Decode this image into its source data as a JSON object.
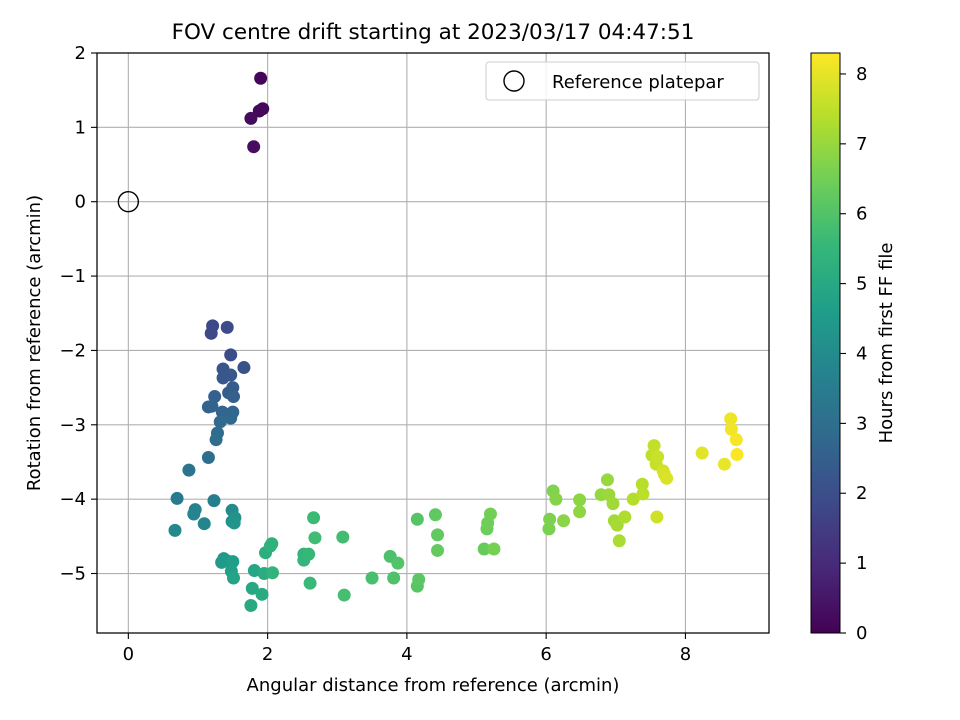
{
  "chart_data": {
    "type": "scatter",
    "title": "FOV centre drift starting at 2023/03/17 04:47:51",
    "xlabel": "Angular distance from reference (arcmin)",
    "ylabel": "Rotation from reference (arcmin)",
    "xlim": [
      -0.45,
      9.2
    ],
    "ylim": [
      -5.8,
      2.0
    ],
    "xticks": [
      0,
      2,
      4,
      6,
      8
    ],
    "yticks": [
      -5,
      -4,
      -3,
      -2,
      -1,
      0,
      1,
      2
    ],
    "grid": true,
    "legend": {
      "position": "top-right",
      "entries": [
        "Reference platepar"
      ]
    },
    "reference_point": {
      "x": 0,
      "y": 0,
      "label": "Reference platepar"
    },
    "colorbar": {
      "label": "Hours from first FF file",
      "colormap": "viridis",
      "range": [
        0,
        8.3
      ],
      "ticks": [
        0,
        1,
        2,
        3,
        4,
        5,
        6,
        7,
        8
      ]
    },
    "colormap_stops": [
      "#440154",
      "#482878",
      "#3e4989",
      "#31688e",
      "#26828e",
      "#1f9e89",
      "#35b779",
      "#6ece58",
      "#b5de2b",
      "#fde725"
    ],
    "series": [
      {
        "points": [
          [
            1.9,
            1.66,
            0.1
          ],
          [
            1.88,
            1.22,
            0.15
          ],
          [
            1.93,
            1.25,
            0.2
          ],
          [
            1.76,
            1.12,
            0.25
          ],
          [
            1.8,
            0.74,
            0.3
          ],
          [
            1.21,
            -1.67,
            1.8
          ],
          [
            1.19,
            -1.77,
            1.85
          ],
          [
            1.42,
            -1.69,
            1.9
          ],
          [
            1.47,
            -2.06,
            2.0
          ],
          [
            1.66,
            -2.23,
            2.1
          ],
          [
            1.36,
            -2.25,
            2.2
          ],
          [
            1.36,
            -2.37,
            2.25
          ],
          [
            1.47,
            -2.33,
            2.3
          ],
          [
            1.5,
            -2.5,
            2.4
          ],
          [
            1.44,
            -2.57,
            2.45
          ],
          [
            1.51,
            -2.62,
            2.5
          ],
          [
            1.24,
            -2.62,
            2.55
          ],
          [
            1.15,
            -2.76,
            2.6
          ],
          [
            1.2,
            -2.75,
            2.65
          ],
          [
            1.35,
            -2.83,
            2.7
          ],
          [
            1.5,
            -2.83,
            2.75
          ],
          [
            1.47,
            -2.91,
            2.8
          ],
          [
            1.32,
            -2.96,
            2.85
          ],
          [
            1.28,
            -3.11,
            2.9
          ],
          [
            1.26,
            -3.2,
            2.95
          ],
          [
            1.15,
            -3.44,
            3.0
          ],
          [
            0.87,
            -3.61,
            3.2
          ],
          [
            0.7,
            -3.99,
            3.4
          ],
          [
            1.23,
            -4.02,
            3.6
          ],
          [
            0.96,
            -4.14,
            3.7
          ],
          [
            0.94,
            -4.2,
            3.75
          ],
          [
            1.09,
            -4.33,
            3.8
          ],
          [
            0.67,
            -4.42,
            3.9
          ],
          [
            1.49,
            -4.15,
            4.0
          ],
          [
            1.49,
            -4.3,
            4.1
          ],
          [
            1.53,
            -4.25,
            4.2
          ],
          [
            1.52,
            -4.32,
            4.3
          ],
          [
            1.37,
            -4.8,
            4.4
          ],
          [
            1.34,
            -4.85,
            4.5
          ],
          [
            1.42,
            -4.83,
            4.55
          ],
          [
            1.5,
            -4.84,
            4.6
          ],
          [
            1.48,
            -4.97,
            4.7
          ],
          [
            1.51,
            -5.06,
            4.8
          ],
          [
            1.81,
            -4.96,
            4.9
          ],
          [
            1.78,
            -5.2,
            4.95
          ],
          [
            1.76,
            -5.43,
            5.0
          ],
          [
            1.92,
            -5.28,
            5.05
          ],
          [
            1.95,
            -5.0,
            5.1
          ],
          [
            1.97,
            -4.72,
            5.2
          ],
          [
            2.06,
            -4.6,
            5.25
          ],
          [
            2.04,
            -4.63,
            5.3
          ],
          [
            2.07,
            -4.99,
            5.4
          ],
          [
            2.52,
            -4.74,
            5.45
          ],
          [
            2.52,
            -4.82,
            5.5
          ],
          [
            2.59,
            -4.74,
            5.55
          ],
          [
            2.61,
            -5.13,
            5.6
          ],
          [
            2.66,
            -4.25,
            5.65
          ],
          [
            2.68,
            -4.52,
            5.7
          ],
          [
            3.08,
            -4.51,
            5.75
          ],
          [
            3.1,
            -5.29,
            5.8
          ],
          [
            3.5,
            -5.06,
            5.85
          ],
          [
            3.76,
            -4.77,
            5.9
          ],
          [
            3.81,
            -5.06,
            5.95
          ],
          [
            3.87,
            -4.86,
            6.0
          ],
          [
            4.15,
            -4.27,
            6.05
          ],
          [
            4.15,
            -5.17,
            6.1
          ],
          [
            4.17,
            -5.08,
            6.15
          ],
          [
            4.41,
            -4.21,
            6.2
          ],
          [
            4.44,
            -4.48,
            6.25
          ],
          [
            4.44,
            -4.69,
            6.3
          ],
          [
            5.11,
            -4.67,
            6.35
          ],
          [
            5.15,
            -4.4,
            6.4
          ],
          [
            5.16,
            -4.32,
            6.45
          ],
          [
            5.2,
            -4.2,
            6.5
          ],
          [
            5.25,
            -4.67,
            6.55
          ],
          [
            6.04,
            -4.4,
            6.6
          ],
          [
            6.05,
            -4.27,
            6.65
          ],
          [
            6.1,
            -3.89,
            6.7
          ],
          [
            6.14,
            -4.0,
            6.75
          ],
          [
            6.25,
            -4.29,
            6.8
          ],
          [
            6.48,
            -4.01,
            6.85
          ],
          [
            6.48,
            -4.17,
            6.9
          ],
          [
            6.79,
            -3.94,
            6.95
          ],
          [
            6.88,
            -3.74,
            7.0
          ],
          [
            6.9,
            -3.94,
            7.05
          ],
          [
            6.96,
            -4.06,
            7.1
          ],
          [
            6.98,
            -4.29,
            7.15
          ],
          [
            7.02,
            -4.35,
            7.2
          ],
          [
            7.05,
            -4.56,
            7.25
          ],
          [
            7.13,
            -4.24,
            7.3
          ],
          [
            7.25,
            -4.0,
            7.35
          ],
          [
            7.38,
            -3.8,
            7.4
          ],
          [
            7.39,
            -3.93,
            7.45
          ],
          [
            7.52,
            -3.41,
            7.5
          ],
          [
            7.55,
            -3.28,
            7.55
          ],
          [
            7.58,
            -3.53,
            7.6
          ],
          [
            7.6,
            -3.43,
            7.65
          ],
          [
            7.59,
            -4.24,
            7.7
          ],
          [
            7.68,
            -3.62,
            7.75
          ],
          [
            7.7,
            -3.67,
            7.8
          ],
          [
            7.73,
            -3.72,
            7.85
          ],
          [
            8.24,
            -3.38,
            7.95
          ],
          [
            8.56,
            -3.53,
            8.05
          ],
          [
            8.65,
            -2.92,
            8.1
          ],
          [
            8.66,
            -3.06,
            8.15
          ],
          [
            8.73,
            -3.2,
            8.2
          ],
          [
            8.74,
            -3.4,
            8.25
          ]
        ]
      }
    ]
  }
}
